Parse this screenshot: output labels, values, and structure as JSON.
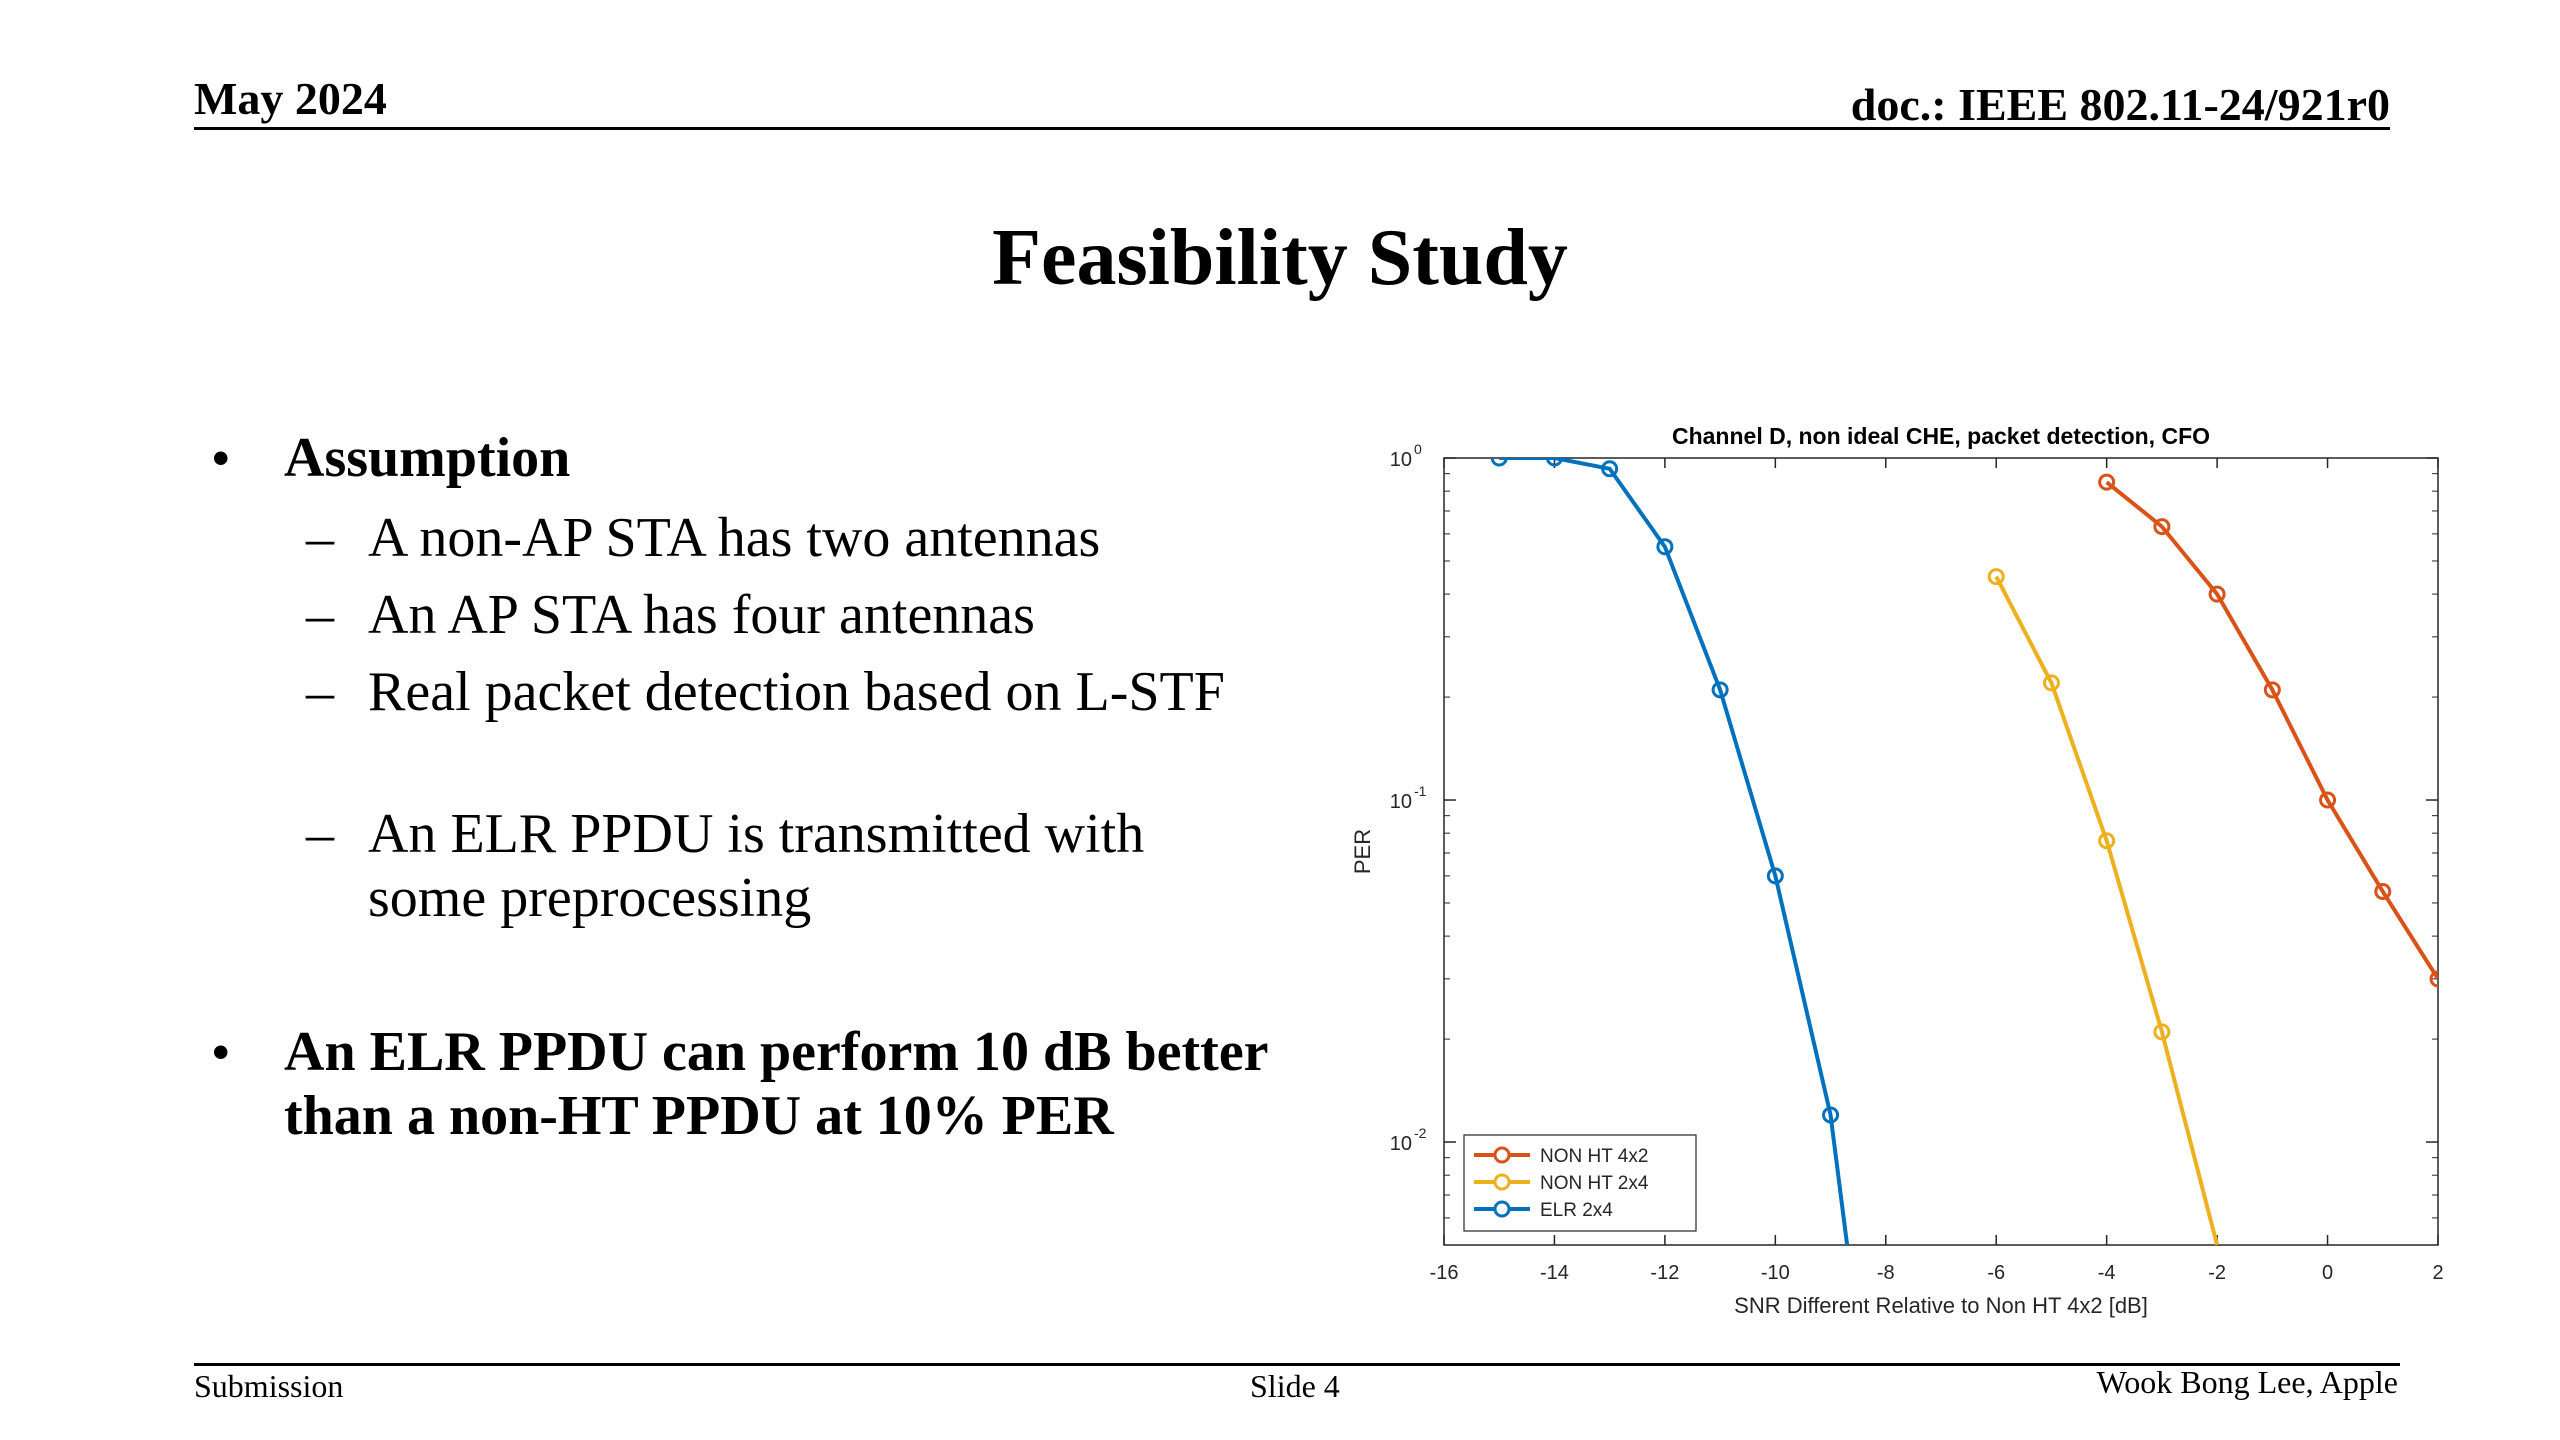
{
  "header": {
    "date": "May 2024",
    "doc": "doc.: IEEE 802.11-24/921r0"
  },
  "slide": {
    "title": "Feasibility Study",
    "bullets": [
      {
        "text": "Assumption",
        "subitems": [
          "A non-AP STA has two antennas",
          "An AP STA has four antennas",
          "Real packet detection based on L-STF",
          "An ELR PPDU is transmitted with some preprocessing"
        ]
      },
      {
        "text": "An ELR PPDU can perform 10 dB better than a non-HT PPDU at 10% PER"
      }
    ],
    "bullet_glyph": "•",
    "dash_glyph": "–"
  },
  "footer": {
    "left": "Submission",
    "center": "Slide 4",
    "right": "Wook Bong Lee, Apple"
  },
  "chart_data": {
    "type": "line",
    "title": "Channel D, non ideal CHE, packet detection, CFO",
    "xlabel": "SNR Different Relative to Non HT 4x2 [dB]",
    "ylabel": "PER",
    "xlim": [
      -16,
      2
    ],
    "ylim": [
      0.005,
      1
    ],
    "yscale": "log",
    "xticks": [
      -16,
      -14,
      -12,
      -10,
      -8,
      -6,
      -4,
      -2,
      0,
      2
    ],
    "yticks": [
      {
        "value": 1,
        "mantissa": "10",
        "exp": "0"
      },
      {
        "value": 0.1,
        "mantissa": "10",
        "exp": "-1"
      },
      {
        "value": 0.01,
        "mantissa": "10",
        "exp": "-2"
      }
    ],
    "grid": false,
    "legend_position": "bottom-left",
    "series": [
      {
        "name": "NON HT 4x2",
        "color": "#D95319",
        "points": [
          [
            -4,
            0.85
          ],
          [
            -3,
            0.63
          ],
          [
            -2,
            0.4
          ],
          [
            -1,
            0.21
          ],
          [
            0,
            0.1
          ],
          [
            1,
            0.054
          ],
          [
            2,
            0.03
          ]
        ]
      },
      {
        "name": "NON HT 2x4",
        "color": "#EDB120",
        "points": [
          [
            -6,
            0.45
          ],
          [
            -5,
            0.22
          ],
          [
            -4,
            0.076
          ],
          [
            -3,
            0.021
          ],
          [
            -2,
            0.005
          ]
        ]
      },
      {
        "name": "ELR 2x4",
        "color": "#0072BD",
        "points": [
          [
            -15,
            1.0
          ],
          [
            -14,
            1.0
          ],
          [
            -13,
            0.93
          ],
          [
            -12,
            0.55
          ],
          [
            -11,
            0.21
          ],
          [
            -10,
            0.06
          ],
          [
            -9,
            0.012
          ],
          [
            -8.7,
            0.005
          ]
        ]
      }
    ]
  }
}
